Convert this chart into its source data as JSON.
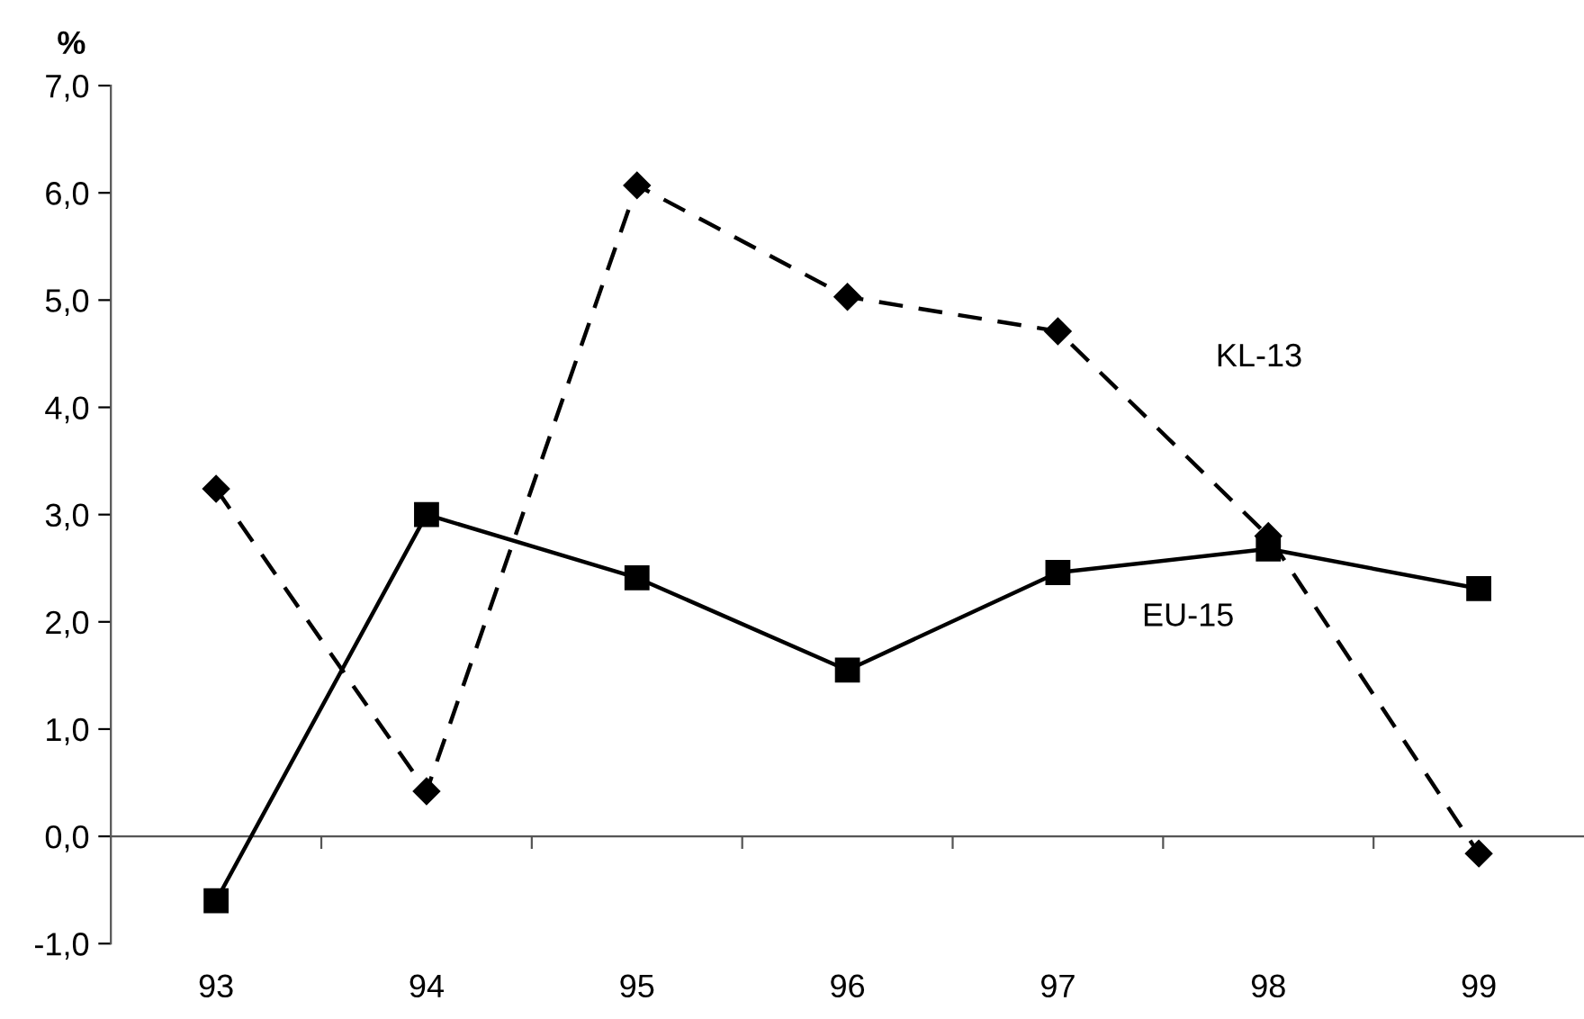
{
  "chart_data": {
    "type": "line",
    "ylabel": "%",
    "categories": [
      "93",
      "94",
      "95",
      "96",
      "97",
      "98",
      "99"
    ],
    "series": [
      {
        "name": "EU-15",
        "color": "#000000",
        "marker": "square",
        "line_style": "solid",
        "values": [
          -0.6,
          3.0,
          2.41,
          1.55,
          2.46,
          2.68,
          2.31
        ]
      },
      {
        "name": "KL-13",
        "color": "#000000",
        "marker": "diamond",
        "line_style": "dashed",
        "values": [
          3.24,
          0.42,
          6.07,
          5.03,
          4.71,
          2.8,
          -0.16
        ]
      }
    ],
    "ylim": [
      -1,
      7
    ],
    "yticks": [
      {
        "value": -1,
        "label": "-1,0"
      },
      {
        "value": 0,
        "label": "0,0"
      },
      {
        "value": 1,
        "label": "1,0"
      },
      {
        "value": 2,
        "label": "2,0"
      },
      {
        "value": 3,
        "label": "3,0"
      },
      {
        "value": 4,
        "label": "4,0"
      },
      {
        "value": 5,
        "label": "5,0"
      },
      {
        "value": 6,
        "label": "6,0"
      },
      {
        "value": 7,
        "label": "7,0"
      }
    ],
    "legend": false
  }
}
